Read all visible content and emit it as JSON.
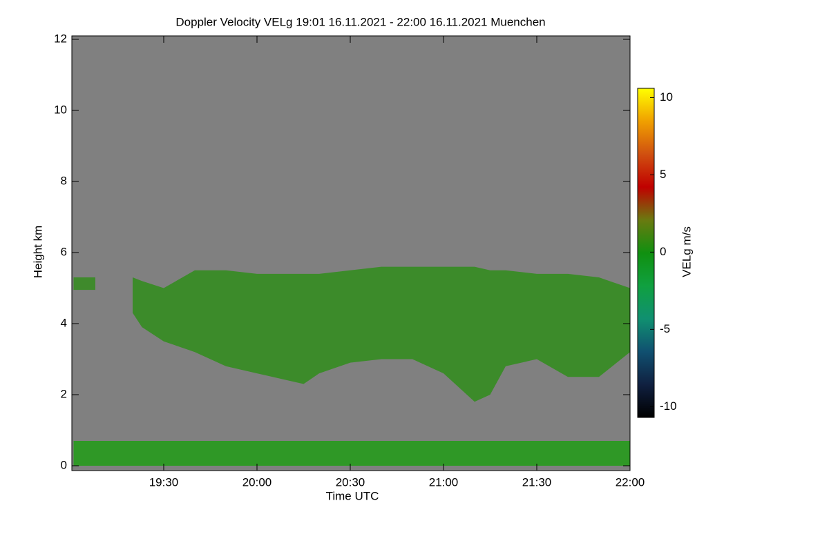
{
  "chart_data": {
    "type": "range-area",
    "title": "Doppler Velocity VELg   19:01 16.11.2021 - 22:00 16.11.2021 Muenchen",
    "x_label": "Time UTC",
    "y_label": "Height km",
    "colorbar_label": "VELg m/s",
    "background": "#808080",
    "xlim": [
      1141,
      1320
    ],
    "xticks": [
      {
        "value": 1170,
        "label": "19:30"
      },
      {
        "value": 1200,
        "label": "20:00"
      },
      {
        "value": 1230,
        "label": "20:30"
      },
      {
        "value": 1260,
        "label": "21:00"
      },
      {
        "value": 1290,
        "label": "21:30"
      },
      {
        "value": 1320,
        "label": "22:00"
      }
    ],
    "ylim": [
      0,
      12
    ],
    "yticks": [
      0,
      2,
      4,
      6,
      8,
      10,
      12
    ],
    "layers": [
      {
        "color": "#3f8a2c",
        "x": [
          1141,
          1148
        ],
        "top": [
          5.3,
          5.3
        ],
        "base": [
          4.95,
          4.95
        ]
      },
      {
        "color": "#3c8b2a",
        "x": [
          1160,
          1163,
          1170,
          1180,
          1190,
          1200,
          1210,
          1215,
          1220,
          1230,
          1240,
          1250,
          1260,
          1270,
          1275,
          1280,
          1290,
          1300,
          1310,
          1320
        ],
        "top": [
          5.3,
          5.2,
          5.0,
          5.5,
          5.5,
          5.4,
          5.4,
          5.4,
          5.4,
          5.5,
          5.6,
          5.6,
          5.6,
          5.6,
          5.5,
          5.5,
          5.4,
          5.4,
          5.3,
          5.0
        ],
        "base": [
          4.3,
          3.9,
          3.5,
          3.2,
          2.8,
          2.6,
          2.4,
          2.3,
          2.6,
          2.9,
          3.0,
          3.0,
          2.6,
          1.8,
          2.0,
          2.8,
          3.0,
          2.5,
          2.5,
          3.2
        ]
      },
      {
        "color": "#2f9826",
        "x": [
          1141,
          1320
        ],
        "top": [
          0.7,
          0.7
        ],
        "base": [
          0,
          0
        ]
      }
    ],
    "clim": [
      -10.7,
      10.6
    ],
    "cticks": [
      -10,
      -5,
      0,
      5,
      10
    ],
    "colorscale": [
      "#000000",
      "#102040",
      "#105070",
      "#109070",
      "#10a040",
      "#109010",
      "#6a7a10",
      "#c00000",
      "#d05010",
      "#f0a000",
      "#ffff00"
    ]
  }
}
